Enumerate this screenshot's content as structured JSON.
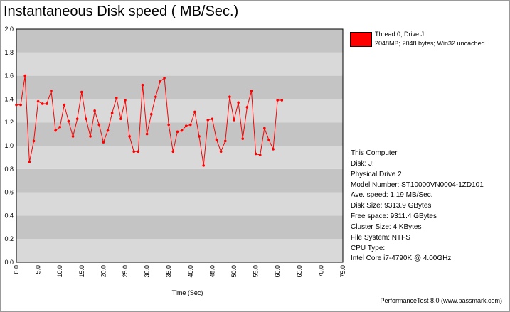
{
  "chart_data": {
    "type": "line",
    "title": "Instantaneous Disk speed ( MB/Sec.)",
    "xlabel": "Time (Sec)",
    "ylabel": "",
    "xlim": [
      0,
      75
    ],
    "ylim": [
      0,
      2.0
    ],
    "x_ticks": [
      "0.0",
      "5.0",
      "10.0",
      "15.0",
      "20.0",
      "25.0",
      "30.0",
      "35.0",
      "40.0",
      "45.0",
      "50.0",
      "55.0",
      "60.0",
      "65.0",
      "70.0",
      "75.0"
    ],
    "y_ticks": [
      "0.0",
      "0.2",
      "0.4",
      "0.6",
      "0.8",
      "1.0",
      "1.2",
      "1.4",
      "1.6",
      "1.8",
      "2.0"
    ],
    "grid": true,
    "legend_position": "top-right",
    "series": [
      {
        "name": "Thread 0, Drive J:",
        "color": "#ff0000",
        "x": [
          0,
          1,
          2,
          3,
          4,
          5,
          6,
          7,
          8,
          9,
          10,
          11,
          12,
          13,
          14,
          15,
          16,
          17,
          18,
          19,
          20,
          21,
          22,
          23,
          24,
          25,
          26,
          27,
          28,
          29,
          30,
          31,
          32,
          33,
          34,
          35,
          36,
          37,
          38,
          39,
          40,
          41,
          42,
          43,
          44,
          45,
          46,
          47,
          48,
          49,
          50,
          51,
          52,
          53,
          54,
          55,
          56,
          57,
          58,
          59,
          60,
          61
        ],
        "y": [
          1.35,
          1.35,
          1.6,
          0.86,
          1.04,
          1.38,
          1.36,
          1.36,
          1.47,
          1.13,
          1.16,
          1.35,
          1.21,
          1.08,
          1.23,
          1.46,
          1.23,
          1.08,
          1.3,
          1.18,
          1.03,
          1.13,
          1.28,
          1.41,
          1.23,
          1.39,
          1.08,
          0.95,
          0.95,
          1.52,
          1.1,
          1.27,
          1.42,
          1.55,
          1.58,
          1.18,
          0.95,
          1.12,
          1.13,
          1.17,
          1.18,
          1.29,
          1.08,
          0.83,
          1.22,
          1.23,
          1.05,
          0.95,
          1.04,
          1.42,
          1.22,
          1.37,
          1.06,
          1.33,
          1.47,
          0.93,
          0.92,
          1.15,
          1.05,
          0.97,
          1.39,
          1.39
        ]
      }
    ]
  },
  "legend": {
    "series_name": "Thread 0, Drive J:",
    "series_detail": "2048MB; 2048 bytes; Win32 uncached",
    "swatch_color": "#ff0000"
  },
  "info": {
    "computer": "This Computer",
    "disk": "Disk: J:",
    "physical_drive": "Physical Drive 2",
    "model": "Model Number: ST10000VN0004-1ZD101",
    "ave_speed": "Ave. speed: 1.19 MB/Sec.",
    "disk_size": "Disk Size: 9313.9 GBytes",
    "free_space": "Free space: 9311.4 GBytes",
    "cluster_size": "Cluster Size: 4 KBytes",
    "file_system": "File System: NTFS",
    "cpu_type": "CPU Type:",
    "cpu_model": "Intel Core i7-4790K @ 4.00GHz"
  },
  "footer": "PerformanceTest 8.0 (www.passmark.com)"
}
